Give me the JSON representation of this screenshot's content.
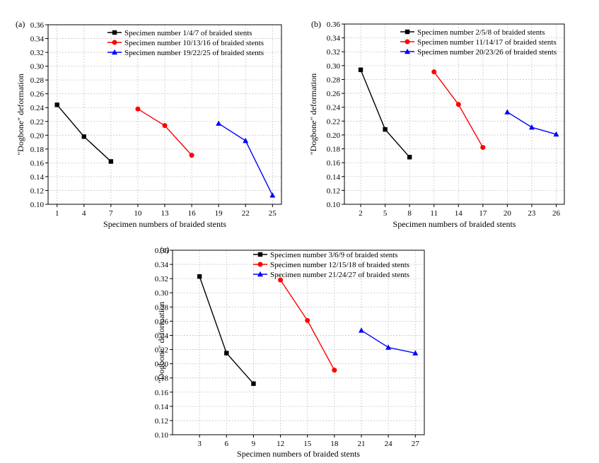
{
  "chart_data": [
    {
      "type": "line",
      "panel_label": "(a)",
      "xlabel": "Specimen numbers of braided stents",
      "ylabel": "\"Dogbone\" deformation",
      "xticks": [
        1,
        4,
        7,
        10,
        13,
        16,
        19,
        22,
        25
      ],
      "yticks": [
        "0.10",
        "0.12",
        "0.14",
        "0.16",
        "0.18",
        "0.20",
        "0.22",
        "0.24",
        "0.26",
        "0.28",
        "0.30",
        "0.32",
        "0.34",
        "0.36"
      ],
      "xlim": [
        0,
        26
      ],
      "ylim": [
        0.1,
        0.36
      ],
      "grid": true,
      "legend_position": "top-right",
      "series": [
        {
          "name": "Specimen number 1/4/7 of braided stents",
          "color": "#000000",
          "marker": "square",
          "x": [
            1,
            4,
            7
          ],
          "y": [
            0.244,
            0.198,
            0.162
          ]
        },
        {
          "name": "Specimen number 10/13/16 of braided stents",
          "color": "#ff0000",
          "marker": "circle",
          "x": [
            10,
            13,
            16
          ],
          "y": [
            0.238,
            0.214,
            0.171
          ]
        },
        {
          "name": "Specimen number 19/22/25 of braided stents",
          "color": "#0000ff",
          "marker": "triangle",
          "x": [
            19,
            22,
            25
          ],
          "y": [
            0.217,
            0.192,
            0.113
          ]
        }
      ]
    },
    {
      "type": "line",
      "panel_label": "(b)",
      "xlabel": "Specimen numbers of braided stents",
      "ylabel": "\"Dogbone\" deformation",
      "xticks": [
        2,
        5,
        8,
        11,
        14,
        17,
        20,
        23,
        26
      ],
      "yticks": [
        "0.10",
        "0.12",
        "0.14",
        "0.16",
        "0.18",
        "0.20",
        "0.22",
        "0.24",
        "0.26",
        "0.28",
        "0.30",
        "0.32",
        "0.34",
        "0.36"
      ],
      "xlim": [
        0,
        27
      ],
      "ylim": [
        0.1,
        0.36
      ],
      "grid": true,
      "legend_position": "top-right",
      "series": [
        {
          "name": "Specimen number 2/5/8 of braided stents",
          "color": "#000000",
          "marker": "square",
          "x": [
            2,
            5,
            8
          ],
          "y": [
            0.294,
            0.208,
            0.168
          ]
        },
        {
          "name": "Specimen number 11/14/17 of braided stents",
          "color": "#ff0000",
          "marker": "circle",
          "x": [
            11,
            14,
            17
          ],
          "y": [
            0.291,
            0.244,
            0.182
          ]
        },
        {
          "name": "Specimen number 20/23/26 of braided stents",
          "color": "#0000ff",
          "marker": "triangle",
          "x": [
            20,
            23,
            26
          ],
          "y": [
            0.233,
            0.211,
            0.201
          ]
        }
      ]
    },
    {
      "type": "line",
      "panel_label": "(c)",
      "xlabel": "Specimen numbers of braided stents",
      "ylabel": "\"Dogbone\" deformation",
      "xticks": [
        3,
        6,
        9,
        12,
        15,
        18,
        21,
        24,
        27
      ],
      "yticks": [
        "0.10",
        "0.12",
        "0.14",
        "0.16",
        "0.18",
        "0.20",
        "0.22",
        "0.24",
        "0.26",
        "0.28",
        "0.30",
        "0.32",
        "0.34",
        "0.36"
      ],
      "xlim": [
        0,
        28
      ],
      "ylim": [
        0.1,
        0.36
      ],
      "grid": true,
      "legend_position": "top-right",
      "series": [
        {
          "name": "Specimen number 3/6/9 of braided stents",
          "color": "#000000",
          "marker": "square",
          "x": [
            3,
            6,
            9
          ],
          "y": [
            0.323,
            0.215,
            0.172
          ]
        },
        {
          "name": "Specimen number 12/15/18 of braided stents",
          "color": "#ff0000",
          "marker": "circle",
          "x": [
            12,
            15,
            18
          ],
          "y": [
            0.318,
            0.261,
            0.191
          ]
        },
        {
          "name": "Specimen number 21/24/27 of braided stents",
          "color": "#0000ff",
          "marker": "triangle",
          "x": [
            21,
            24,
            27
          ],
          "y": [
            0.247,
            0.223,
            0.215
          ]
        }
      ]
    }
  ]
}
